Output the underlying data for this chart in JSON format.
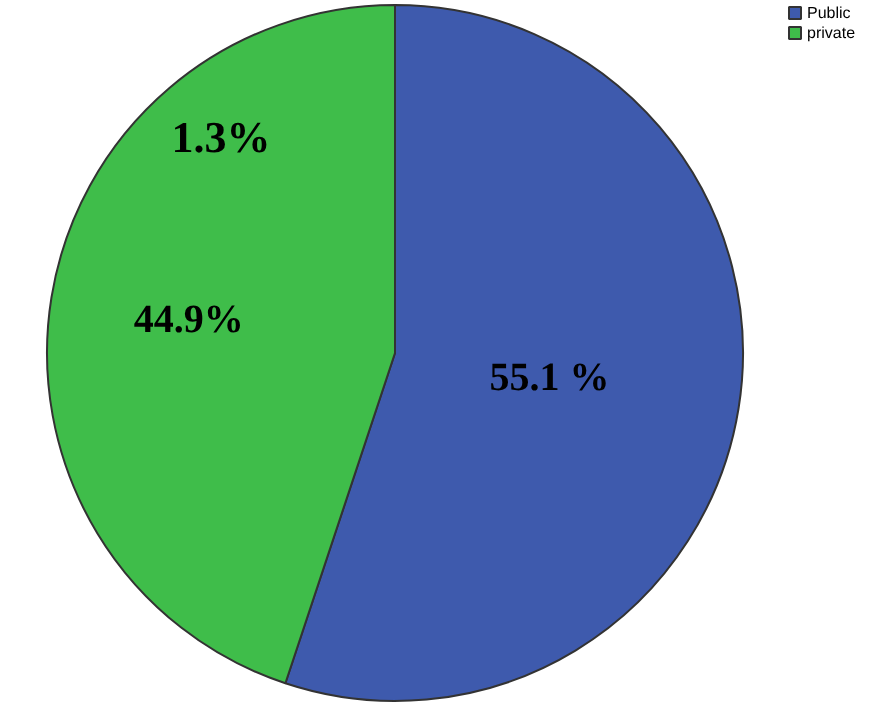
{
  "chart_data": {
    "type": "pie",
    "categories": [
      "Public",
      "private"
    ],
    "values": [
      55.1,
      44.9
    ],
    "colors": [
      "#3e5aad",
      "#3fbd4a"
    ],
    "value_labels": [
      "55.1 %",
      "44.9%"
    ],
    "annotations": [
      "1.3%"
    ],
    "legend": "top right"
  }
}
